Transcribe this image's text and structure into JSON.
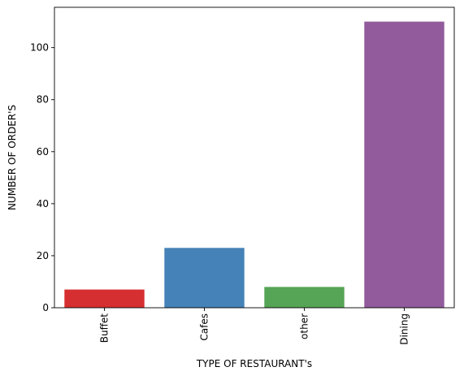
{
  "chart_data": {
    "type": "bar",
    "title": "",
    "xlabel": "TYPE OF RESTAURANT's",
    "ylabel": "NUMBER OF ORDER'S",
    "categories": [
      "Buffet",
      "Cafes",
      "other",
      "Dining"
    ],
    "values": [
      7,
      23,
      8,
      110
    ],
    "colors": [
      "#d62f31",
      "#4582b7",
      "#56a456",
      "#915b9c"
    ],
    "ylim": [
      0,
      115.5
    ],
    "yticks": [
      0,
      20,
      40,
      60,
      80,
      100
    ],
    "grid": false,
    "legend": "none",
    "xtick_rotation": 90
  }
}
